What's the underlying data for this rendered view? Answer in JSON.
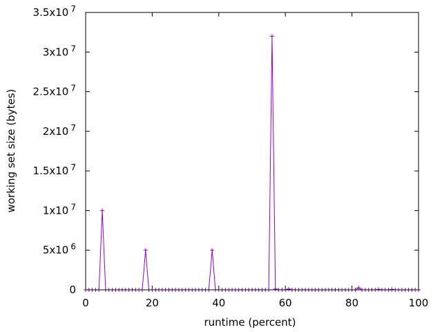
{
  "chart_data": {
    "type": "line",
    "title": "",
    "xlabel": "runtime (percent)",
    "ylabel": "working set size (bytes)",
    "xlim": [
      0,
      100
    ],
    "ylim": [
      0,
      35000000
    ],
    "grid": false,
    "legend": "none",
    "x_ticks": [
      {
        "value": 0,
        "label": "0"
      },
      {
        "value": 20,
        "label": "20"
      },
      {
        "value": 40,
        "label": "40"
      },
      {
        "value": 60,
        "label": "60"
      },
      {
        "value": 80,
        "label": "80"
      },
      {
        "value": 100,
        "label": "100"
      }
    ],
    "y_ticks": [
      {
        "value": 0,
        "mantissa": "0",
        "exp": ""
      },
      {
        "value": 5000000,
        "mantissa": "5x10",
        "exp": "6"
      },
      {
        "value": 10000000,
        "mantissa": "1x10",
        "exp": "7"
      },
      {
        "value": 15000000,
        "mantissa": "1.5x10",
        "exp": "7"
      },
      {
        "value": 20000000,
        "mantissa": "2x10",
        "exp": "7"
      },
      {
        "value": 25000000,
        "mantissa": "2.5x10",
        "exp": "7"
      },
      {
        "value": 30000000,
        "mantissa": "3x10",
        "exp": "7"
      },
      {
        "value": 35000000,
        "mantissa": "3.5x10",
        "exp": "7"
      }
    ],
    "series": [
      {
        "color": "#9400D3",
        "marker": "plus",
        "x": [
          0,
          1,
          2,
          3,
          4,
          5,
          6,
          7,
          8,
          9,
          10,
          11,
          12,
          13,
          14,
          15,
          16,
          17,
          18,
          19,
          20,
          21,
          22,
          23,
          24,
          25,
          26,
          27,
          28,
          29,
          30,
          31,
          32,
          33,
          34,
          35,
          36,
          37,
          38,
          39,
          40,
          41,
          42,
          43,
          44,
          45,
          46,
          47,
          48,
          49,
          50,
          51,
          52,
          53,
          54,
          55,
          56,
          57,
          58,
          59,
          60,
          61,
          62,
          63,
          64,
          65,
          66,
          67,
          68,
          69,
          70,
          71,
          72,
          73,
          74,
          75,
          76,
          77,
          78,
          79,
          80,
          81,
          82,
          83,
          84,
          85,
          86,
          87,
          88,
          89,
          90,
          91,
          92,
          93,
          94,
          95,
          96,
          97,
          98,
          99,
          100
        ],
        "y": [
          0,
          0,
          0,
          0,
          0,
          10000000,
          0,
          0,
          0,
          0,
          0,
          0,
          0,
          0,
          0,
          0,
          0,
          0,
          5000000,
          0,
          0,
          0,
          0,
          0,
          0,
          0,
          0,
          0,
          0,
          0,
          0,
          0,
          0,
          0,
          0,
          0,
          0,
          0,
          5000000,
          0,
          0,
          0,
          0,
          0,
          0,
          0,
          0,
          0,
          0,
          0,
          0,
          0,
          0,
          0,
          0,
          0,
          32000000,
          100000,
          0,
          0,
          0,
          100000,
          0,
          0,
          0,
          0,
          0,
          0,
          0,
          0,
          0,
          0,
          0,
          0,
          0,
          0,
          0,
          0,
          0,
          0,
          0,
          0,
          250000,
          0,
          0,
          0,
          0,
          0,
          50000,
          0,
          0,
          0,
          50000,
          0,
          0,
          0,
          0,
          0,
          0,
          0,
          0
        ]
      }
    ]
  }
}
